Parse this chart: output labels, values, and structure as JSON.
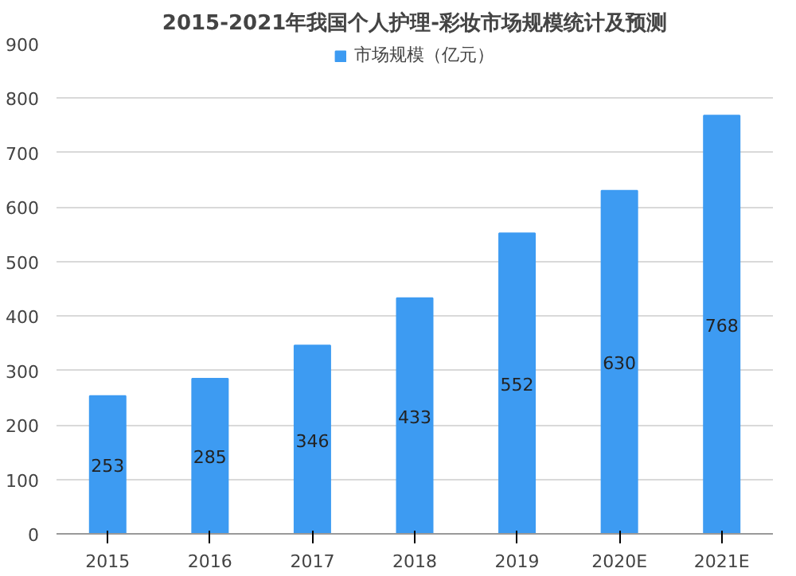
{
  "chart_data": {
    "type": "bar",
    "title": "2015-2021年我国个人护理-彩妆市场规模统计及预测",
    "categories": [
      "2015",
      "2016",
      "2017",
      "2018",
      "2019",
      "2020E",
      "2021E"
    ],
    "series": [
      {
        "name": "市场规模（亿元）",
        "color": "#3d9bf2",
        "values": [
          253,
          285,
          346,
          433,
          552,
          630,
          768
        ]
      }
    ],
    "ylim": [
      0,
      900
    ],
    "yticks": [
      0,
      100,
      200,
      300,
      400,
      500,
      600,
      700,
      800,
      900
    ],
    "grid": "y",
    "legend": "top",
    "data_labels": true
  }
}
